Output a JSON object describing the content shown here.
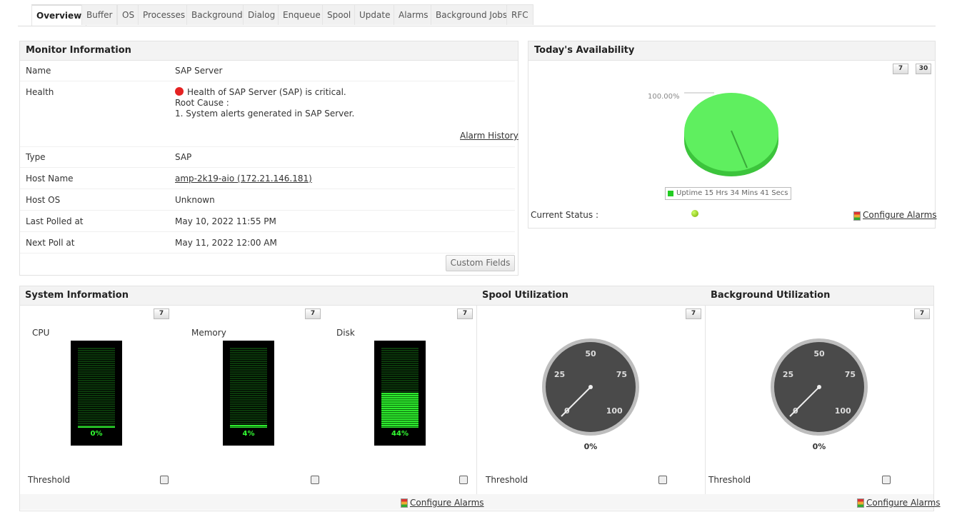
{
  "tabs": [
    "Overview",
    "Buffer",
    "OS",
    "Processes",
    "Background",
    "Dialog",
    "Enqueue",
    "Spool",
    "Update",
    "Alarms",
    "Background Jobs",
    "RFC"
  ],
  "monitor_info": {
    "title": "Monitor Information",
    "rows": [
      {
        "label": "Name",
        "value": "SAP Server"
      },
      {
        "label": "Type",
        "value": "SAP"
      },
      {
        "label": "Host Name",
        "value": "amp-2k19-aio (172.21.146.181)"
      },
      {
        "label": "Host OS",
        "value": "Unknown"
      },
      {
        "label": "Last Polled at",
        "value": "May 10, 2022 11:55 PM"
      },
      {
        "label": "Next Poll at",
        "value": "May 11, 2022 12:00 AM"
      }
    ],
    "health": {
      "label": "Health",
      "status": "Health of SAP Server (SAP) is critical.",
      "root_cause_label": "Root Cause :",
      "root_cause": "1. System alerts generated in SAP Server."
    },
    "alarm_history": "Alarm History",
    "custom_fields": "Custom Fields"
  },
  "availability": {
    "title": "Today's Availability",
    "period_buttons": [
      "7",
      "30"
    ],
    "pie_label": "100.00%",
    "legend": "Uptime 15 Hrs 34 Mins 41 Secs",
    "current_status": "Current Status :",
    "configure_alarms": "Configure Alarms"
  },
  "system_info": {
    "title": "System Information",
    "period_button": "7",
    "meters": [
      {
        "label": "CPU",
        "value": "0%"
      },
      {
        "label": "Memory",
        "value": "4%"
      },
      {
        "label": "Disk",
        "value": "44%"
      }
    ],
    "threshold": "Threshold",
    "configure_alarms": "Configure Alarms"
  },
  "gauges": [
    {
      "title": "Spool Utilization",
      "period_button": "7",
      "ticks": [
        "0",
        "25",
        "50",
        "75",
        "100"
      ],
      "value": "0%",
      "threshold": "Threshold"
    },
    {
      "title": "Background Utilization",
      "period_button": "7",
      "ticks": [
        "0",
        "25",
        "50",
        "75",
        "100"
      ],
      "value": "0%",
      "threshold": "Threshold"
    }
  ],
  "footer_configure_alarms": "Configure Alarms"
}
